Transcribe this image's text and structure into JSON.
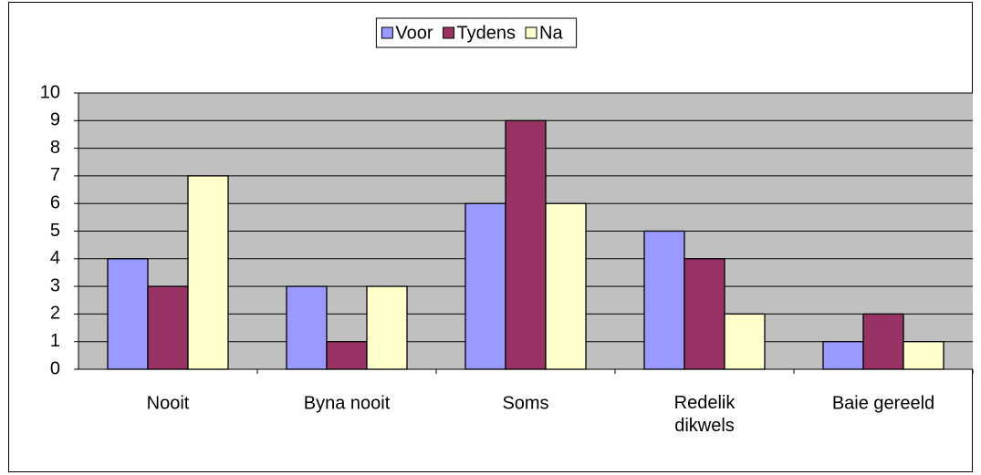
{
  "chart_data": {
    "type": "bar",
    "categories": [
      "Nooit",
      "Byna nooit",
      "Soms",
      "Redelik dikwels",
      "Baie gereeld"
    ],
    "series": [
      {
        "name": "Voor",
        "color": "#9999ff",
        "values": [
          4,
          3,
          6,
          5,
          1
        ]
      },
      {
        "name": "Tydens",
        "color": "#993366",
        "values": [
          3,
          1,
          9,
          4,
          2
        ]
      },
      {
        "name": "Na",
        "color": "#ffffcc",
        "values": [
          7,
          3,
          6,
          2,
          1
        ]
      }
    ],
    "ylim": [
      0,
      10
    ],
    "yticks": [
      0,
      1,
      2,
      3,
      4,
      5,
      6,
      7,
      8,
      9,
      10
    ],
    "grid": true,
    "legend": "top",
    "plot_background": "#c0c0c0"
  }
}
